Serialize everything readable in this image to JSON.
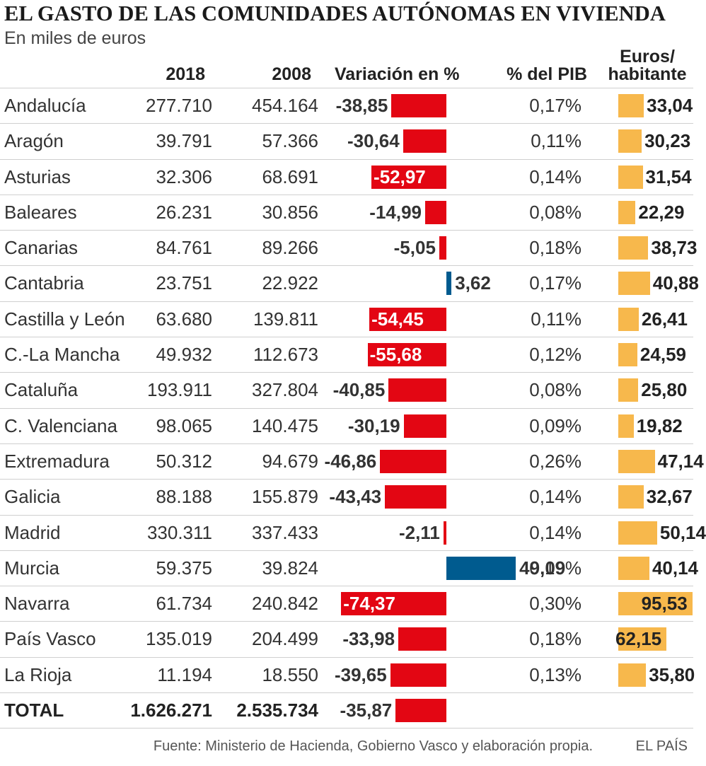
{
  "header": {
    "title": "EL GASTO DE LAS COMUNIDADES AUTÓNOMAS EN VIVIENDA",
    "subtitle": "En miles de euros"
  },
  "columns": {
    "y2018": "2018",
    "y2008": "2008",
    "variation": "Variación en %",
    "pib": "% del PIB",
    "euros_line1": "Euros/",
    "euros_line2": "habitante"
  },
  "chart_data": {
    "type": "table",
    "title": "EL GASTO DE LAS COMUNIDADES AUTÓNOMAS EN VIVIENDA",
    "subtitle": "En miles de euros",
    "rows": [
      {
        "name": "Andalucía",
        "v2018": "277.710",
        "v2008": "454.164",
        "variation": -38.85,
        "variation_label": "-38,85",
        "pib": "0,17%",
        "euros": 33.04,
        "euros_label": "33,04"
      },
      {
        "name": "Aragón",
        "v2018": "39.791",
        "v2008": "57.366",
        "variation": -30.64,
        "variation_label": "-30,64",
        "pib": "0,11%",
        "euros": 30.23,
        "euros_label": "30,23"
      },
      {
        "name": "Asturias",
        "v2018": "32.306",
        "v2008": "68.691",
        "variation": -52.97,
        "variation_label": "-52,97",
        "pib": "0,14%",
        "euros": 31.54,
        "euros_label": "31,54"
      },
      {
        "name": "Baleares",
        "v2018": "26.231",
        "v2008": "30.856",
        "variation": -14.99,
        "variation_label": "-14,99",
        "pib": "0,08%",
        "euros": 22.29,
        "euros_label": "22,29"
      },
      {
        "name": "Canarias",
        "v2018": "84.761",
        "v2008": "89.266",
        "variation": -5.05,
        "variation_label": "-5,05",
        "pib": "0,18%",
        "euros": 38.73,
        "euros_label": "38,73"
      },
      {
        "name": "Cantabria",
        "v2018": "23.751",
        "v2008": "22.922",
        "variation": 3.62,
        "variation_label": "3,62",
        "pib": "0,17%",
        "euros": 40.88,
        "euros_label": "40,88"
      },
      {
        "name": "Castilla y León",
        "v2018": "63.680",
        "v2008": "139.811",
        "variation": -54.45,
        "variation_label": "-54,45",
        "pib": "0,11%",
        "euros": 26.41,
        "euros_label": "26,41"
      },
      {
        "name": "C.-La Mancha",
        "v2018": "49.932",
        "v2008": "112.673",
        "variation": -55.68,
        "variation_label": "-55,68",
        "pib": "0,12%",
        "euros": 24.59,
        "euros_label": "24,59"
      },
      {
        "name": "Cataluña",
        "v2018": "193.911",
        "v2008": "327.804",
        "variation": -40.85,
        "variation_label": "-40,85",
        "pib": "0,08%",
        "euros": 25.8,
        "euros_label": "25,80"
      },
      {
        "name": "C. Valenciana",
        "v2018": "98.065",
        "v2008": "140.475",
        "variation": -30.19,
        "variation_label": "-30,19",
        "pib": "0,09%",
        "euros": 19.82,
        "euros_label": "19,82"
      },
      {
        "name": "Extremadura",
        "v2018": "50.312",
        "v2008": "94.679",
        "variation": -46.86,
        "variation_label": "-46,86",
        "pib": "0,26%",
        "euros": 47.14,
        "euros_label": "47,14"
      },
      {
        "name": "Galicia",
        "v2018": "88.188",
        "v2008": "155.879",
        "variation": -43.43,
        "variation_label": "-43,43",
        "pib": "0,14%",
        "euros": 32.67,
        "euros_label": "32,67"
      },
      {
        "name": "Madrid",
        "v2018": "330.311",
        "v2008": "337.433",
        "variation": -2.11,
        "variation_label": "-2,11",
        "pib": "0,14%",
        "euros": 50.14,
        "euros_label": "50,14"
      },
      {
        "name": "Murcia",
        "v2018": "59.375",
        "v2008": "39.824",
        "variation": 49.09,
        "variation_label": "49,09",
        "pib": "0,19%",
        "euros": 40.14,
        "euros_label": "40,14"
      },
      {
        "name": "Navarra",
        "v2018": "61.734",
        "v2008": "240.842",
        "variation": -74.37,
        "variation_label": "-74,37",
        "pib": "0,30%",
        "euros": 95.53,
        "euros_label": "95,53"
      },
      {
        "name": "País Vasco",
        "v2018": "135.019",
        "v2008": "204.499",
        "variation": -33.98,
        "variation_label": "-33,98",
        "pib": "0,18%",
        "euros": 62.15,
        "euros_label": "62,15"
      },
      {
        "name": "La Rioja",
        "v2018": "11.194",
        "v2008": "18.550",
        "variation": -39.65,
        "variation_label": "-39,65",
        "pib": "0,13%",
        "euros": 35.8,
        "euros_label": "35,80"
      }
    ],
    "total": {
      "name": "TOTAL",
      "v2018": "1.626.271",
      "v2008": "2.535.734",
      "variation": -35.87,
      "variation_label": "-35,87"
    },
    "colors": {
      "negative": "#e30613",
      "positive": "#005b8f",
      "euros": "#f7b84c"
    }
  },
  "footer": {
    "source": "Fuente: Ministerio de Hacienda, Gobierno Vasco y elaboración propia.",
    "brand": "EL PAÍS"
  }
}
